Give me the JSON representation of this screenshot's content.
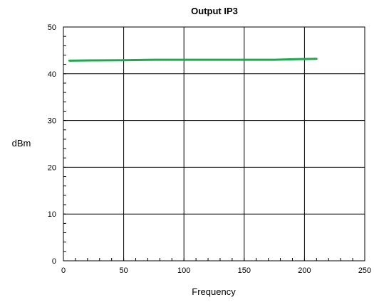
{
  "chart_data": {
    "type": "line",
    "title": "Output IP3",
    "xlabel": "Frequency",
    "ylabel": "dBm",
    "xlim": [
      0,
      250
    ],
    "ylim": [
      0,
      50
    ],
    "x_ticks": [
      0,
      50,
      100,
      150,
      200,
      250
    ],
    "y_ticks": [
      0,
      10,
      20,
      30,
      40,
      50
    ],
    "x_minor_step": 10,
    "y_minor_step": 2,
    "grid": true,
    "legend": "none",
    "series": [
      {
        "color": "#1fa84f",
        "x": [
          5,
          25,
          50,
          75,
          100,
          125,
          150,
          175,
          190,
          210
        ],
        "y": [
          42.8,
          42.85,
          42.9,
          43.0,
          43.0,
          43.0,
          43.0,
          43.0,
          43.1,
          43.2
        ]
      }
    ]
  }
}
